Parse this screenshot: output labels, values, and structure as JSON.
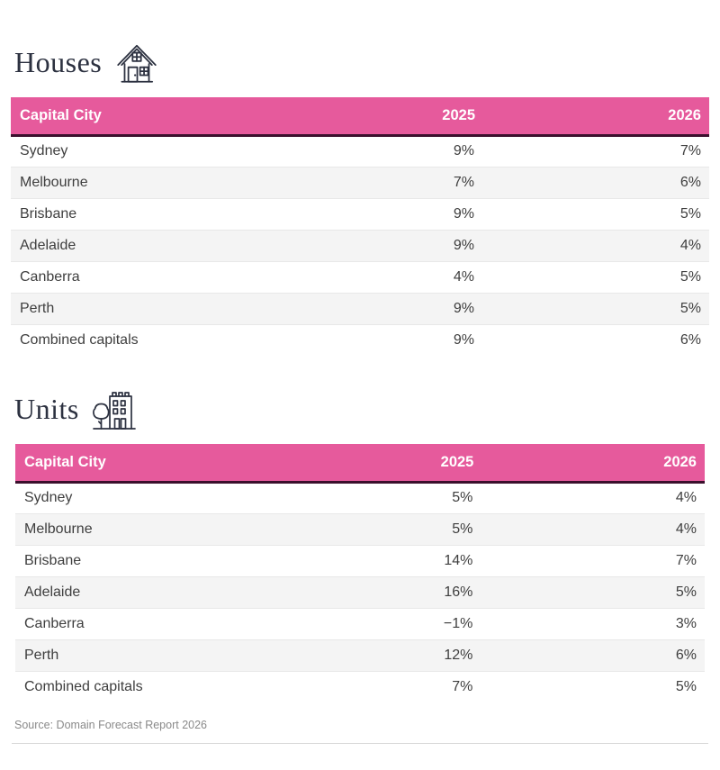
{
  "colors": {
    "header_pink": "#e65a9c",
    "header_border": "#3b102d",
    "title_color": "#2c3140",
    "row_alt_bg": "#f4f4f4",
    "body_text": "#3e3e3e",
    "source_text": "#8a8a8a"
  },
  "chart_data": [
    {
      "type": "table",
      "title": "Houses",
      "icon": "house-icon",
      "columns": [
        "Capital City",
        "2025",
        "2026"
      ],
      "rows": [
        [
          "Sydney",
          "9%",
          "7%"
        ],
        [
          "Melbourne",
          "7%",
          "6%"
        ],
        [
          "Brisbane",
          "9%",
          "5%"
        ],
        [
          "Adelaide",
          "9%",
          "4%"
        ],
        [
          "Canberra",
          "4%",
          "5%"
        ],
        [
          "Perth",
          "9%",
          "5%"
        ],
        [
          "Combined capitals",
          "9%",
          "6%"
        ]
      ]
    },
    {
      "type": "table",
      "title": "Units",
      "icon": "apartment-building-icon",
      "columns": [
        "Capital City",
        "2025",
        "2026"
      ],
      "rows": [
        [
          "Sydney",
          "5%",
          "4%"
        ],
        [
          "Melbourne",
          "5%",
          "4%"
        ],
        [
          "Brisbane",
          "14%",
          "7%"
        ],
        [
          "Adelaide",
          "16%",
          "5%"
        ],
        [
          "Canberra",
          "−1%",
          "3%"
        ],
        [
          "Perth",
          "12%",
          "6%"
        ],
        [
          "Combined capitals",
          "7%",
          "5%"
        ]
      ]
    }
  ],
  "footer": {
    "source": "Source: Domain Forecast Report 2026"
  }
}
